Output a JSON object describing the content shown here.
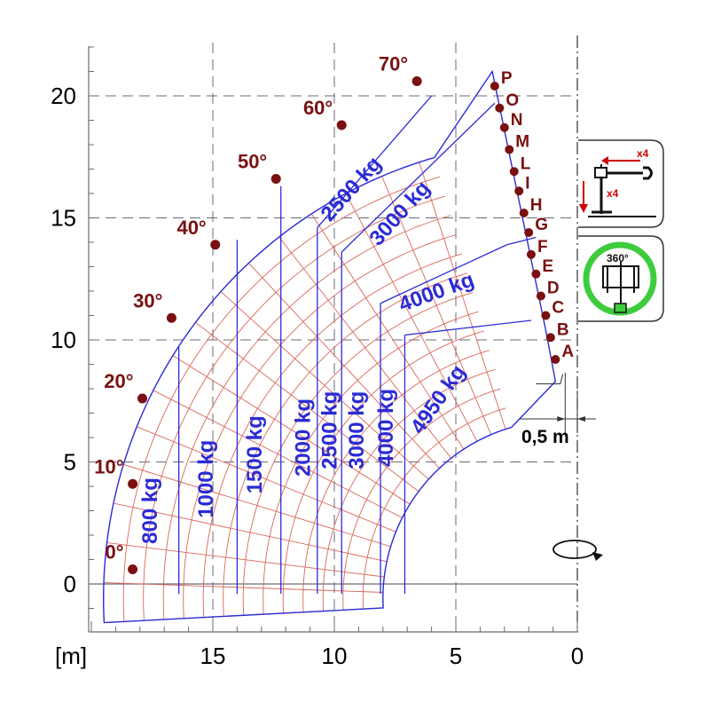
{
  "colors": {
    "envelope": "#2b2bd6",
    "grid_red": "#d9665a",
    "marker": "#7a1010",
    "label_red": "#7a1010",
    "axis": "#6a6a78",
    "dashed": "#6a6a78",
    "green": "#3dcc3d"
  },
  "axis": {
    "unit_label": "[m]",
    "x_ticks": [
      "15",
      "10",
      "5",
      "0"
    ],
    "y_ticks": [
      "20",
      "15",
      "10",
      "5",
      "0"
    ]
  },
  "chart_data": {
    "type": "load-chart",
    "x_axis_reversed": true,
    "xlim": [
      -1.5,
      20
    ],
    "ylim": [
      -2,
      22.5
    ],
    "angles": [
      {
        "label": "0°",
        "x": 18.3,
        "y": 0.6
      },
      {
        "label": "10°",
        "x": 18.3,
        "y": 4.1
      },
      {
        "label": "20°",
        "x": 17.9,
        "y": 7.6
      },
      {
        "label": "30°",
        "x": 16.7,
        "y": 10.9
      },
      {
        "label": "40°",
        "x": 14.9,
        "y": 13.9
      },
      {
        "label": "50°",
        "x": 12.4,
        "y": 16.6
      },
      {
        "label": "60°",
        "x": 9.7,
        "y": 18.8
      },
      {
        "label": "70°",
        "x": 6.6,
        "y": 20.6
      }
    ],
    "extensions": [
      {
        "label": "A",
        "x": 0.9,
        "y": 9.2
      },
      {
        "label": "B",
        "x": 1.1,
        "y": 10.1
      },
      {
        "label": "C",
        "x": 1.3,
        "y": 11.0
      },
      {
        "label": "D",
        "x": 1.5,
        "y": 11.8
      },
      {
        "label": "E",
        "x": 1.7,
        "y": 12.7
      },
      {
        "label": "F",
        "x": 1.9,
        "y": 13.5
      },
      {
        "label": "G",
        "x": 2.0,
        "y": 14.4
      },
      {
        "label": "H",
        "x": 2.2,
        "y": 15.2
      },
      {
        "label": "I",
        "x": 2.4,
        "y": 16.1
      },
      {
        "label": "L",
        "x": 2.6,
        "y": 16.9
      },
      {
        "label": "M",
        "x": 2.8,
        "y": 17.8
      },
      {
        "label": "N",
        "x": 3.0,
        "y": 18.7
      },
      {
        "label": "O",
        "x": 3.2,
        "y": 19.5
      },
      {
        "label": "P",
        "x": 3.4,
        "y": 20.4
      }
    ],
    "load_zones": [
      {
        "label": "800 kg",
        "x": 17.3,
        "y": 3.0,
        "rot": -90
      },
      {
        "label": "1000 kg",
        "x": 15.0,
        "y": 4.3,
        "rot": -90
      },
      {
        "label": "1500 kg",
        "x": 13.0,
        "y": 5.3,
        "rot": -90
      },
      {
        "label": "2000 kg",
        "x": 11.0,
        "y": 6.0,
        "rot": -90
      },
      {
        "label": "2500 kg",
        "x": 9.9,
        "y": 6.3,
        "rot": -90
      },
      {
        "label": "3000 kg",
        "x": 8.8,
        "y": 6.3,
        "rot": -90
      },
      {
        "label": "4000 kg",
        "x": 7.6,
        "y": 6.4,
        "rot": -90
      },
      {
        "label": "4950 kg",
        "x": 5.5,
        "y": 7.4,
        "rot": -55
      },
      {
        "label": "4000 kg",
        "x": 5.7,
        "y": 11.7,
        "rot": -20
      },
      {
        "label": "3000 kg",
        "x": 7.1,
        "y": 15.0,
        "rot": -48
      },
      {
        "label": "2500 kg",
        "x": 9.1,
        "y": 16.0,
        "rot": -48
      }
    ],
    "zone_boundaries": [
      {
        "type": "vertical",
        "x": 16.4,
        "y_top": 9.7
      },
      {
        "type": "vertical",
        "x": 14.0,
        "y_top": 14.1
      },
      {
        "type": "vertical",
        "x": 12.2,
        "y_top": 16.3
      },
      {
        "type": "vertical",
        "x": 10.7,
        "y_top": 14.6
      },
      {
        "type": "vertical",
        "x": 9.7,
        "y_top": 13.6
      },
      {
        "type": "vertical",
        "x": 8.1,
        "y_top": 11.5
      },
      {
        "type": "vertical",
        "x": 7.1,
        "y_top": 10.2
      }
    ],
    "dimension": {
      "label": "0,5 m",
      "from_x": 0.5,
      "to_x": 0
    }
  }
}
